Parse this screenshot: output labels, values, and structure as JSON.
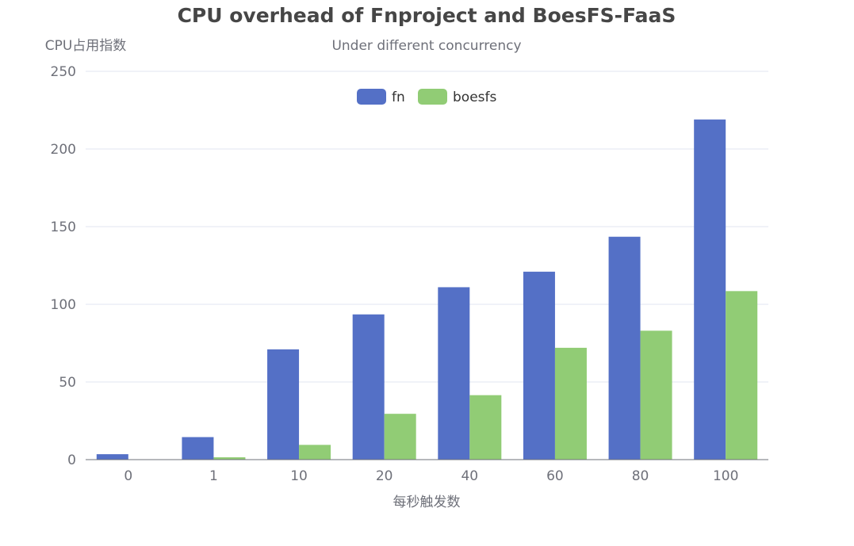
{
  "chart_data": {
    "type": "bar",
    "title": "CPU overhead of Fnproject and BoesFS-FaaS",
    "subtitle": "Under different concurrency",
    "xlabel": "每秒触发数",
    "ylabel": "CPU占用指数",
    "categories": [
      "0",
      "1",
      "10",
      "20",
      "40",
      "60",
      "80",
      "100"
    ],
    "series": [
      {
        "name": "fn",
        "color": "#5470c6",
        "values": [
          3.5,
          14.5,
          71,
          93.5,
          111,
          121,
          143.5,
          219
        ]
      },
      {
        "name": "boesfs",
        "color": "#91cc75",
        "values": [
          0,
          1.5,
          9.5,
          29.5,
          41.5,
          72,
          83,
          108.5
        ]
      }
    ],
    "ylim": [
      0,
      250
    ],
    "yticks": [
      0,
      50,
      100,
      150,
      200,
      250
    ],
    "grid": true,
    "legend_position": "top-center"
  }
}
